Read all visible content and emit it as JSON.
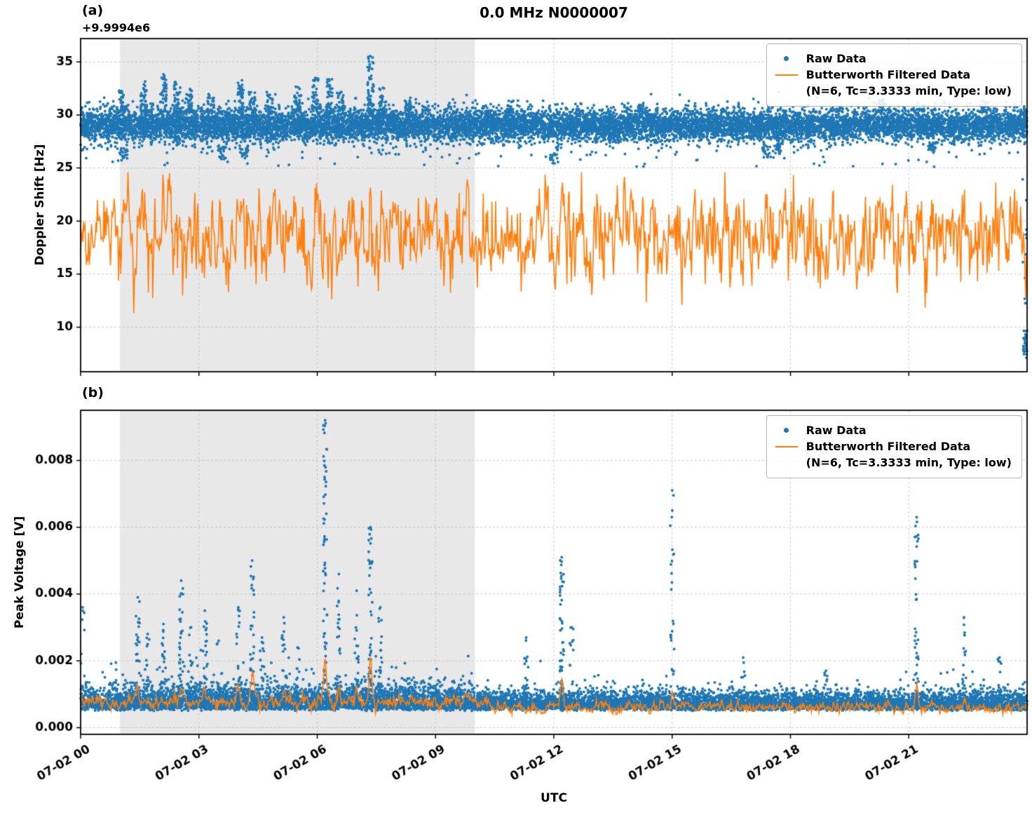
{
  "figure": {
    "title": "0.0 MHz N0000007",
    "panel_a_label": "(a)",
    "panel_b_label": "(b)",
    "offset_label": "+9.9994e6",
    "xlabel": "UTC",
    "legend": {
      "raw_label": "Raw Data",
      "filtered_label": "Butterworth Filtered Data",
      "filtered_sublabel": "(N=6, Tc=3.3333 min, Type: low)"
    },
    "colors": {
      "raw": "#1f77b4",
      "filtered": "#ff7f0e",
      "shade": "#e8e8e8",
      "grid": "#c9c9c9",
      "spine": "#000000"
    }
  },
  "chart_data": [
    {
      "type": "scatter",
      "panel": "(a)",
      "title": "0.0 MHz N0000007",
      "ylabel": "Doppler Shift [Hz]",
      "y_offset": "+9.9994e6",
      "ylim": [
        5.8,
        37.2
      ],
      "yticks": [
        10,
        15,
        20,
        25,
        30,
        35
      ],
      "ytick_labels": [
        "10",
        "15",
        "20",
        "25",
        "30",
        "35"
      ],
      "xlim_hours": [
        0,
        24
      ],
      "xtick_hours": [
        0,
        3,
        6,
        9,
        12,
        15,
        18,
        21
      ],
      "xtick_labels": [
        "07-02 00",
        "07-02 03",
        "07-02 06",
        "07-02 09",
        "07-02 12",
        "07-02 15",
        "07-02 18",
        "07-02 21"
      ],
      "shade_hours": [
        1.0,
        10.0
      ],
      "grid": "dashed",
      "legend_position": "upper right",
      "series": [
        {
          "name": "Raw Data",
          "kind": "scatter",
          "color": "#1f77b4",
          "n_points": 12000,
          "band_center": 29.0,
          "band_sigma": 0.75,
          "upper_clusters": [
            [
              1.05,
              32.3
            ],
            [
              1.6,
              33.2
            ],
            [
              2.1,
              33.9
            ],
            [
              2.45,
              33.2
            ],
            [
              2.75,
              32.5
            ],
            [
              3.3,
              32.1
            ],
            [
              4.05,
              33.4
            ],
            [
              4.35,
              32.3
            ],
            [
              4.8,
              31.9
            ],
            [
              5.5,
              32.7
            ],
            [
              5.95,
              33.6
            ],
            [
              6.3,
              33.4
            ],
            [
              6.6,
              32.3
            ],
            [
              7.35,
              35.8
            ],
            [
              7.65,
              32.7
            ],
            [
              8.3,
              31.7
            ],
            [
              10.9,
              31.4
            ],
            [
              14.2,
              31.2
            ],
            [
              20.3,
              31.5
            ],
            [
              22.9,
              31.3
            ]
          ],
          "lower_clusters": [
            [
              1.1,
              25.6
            ],
            [
              3.6,
              25.7
            ],
            [
              4.15,
              25.9
            ],
            [
              12.0,
              25.4
            ],
            [
              17.4,
              25.8
            ],
            [
              17.65,
              26.3
            ],
            [
              21.6,
              26.4
            ]
          ],
          "right_edge_drop": {
            "t": 23.9,
            "ymin": 7.0,
            "ymax": 9.8,
            "n": 28
          }
        },
        {
          "name": "Butterworth Filtered Data (N=6, Tc=3.3333 min, Type: low)",
          "kind": "line",
          "color": "#ff7f0e",
          "n_points": 1300,
          "mean": 18.35,
          "sigma": 2.0,
          "ar": 0.45,
          "min": 11.0,
          "max": 24.6
        }
      ]
    },
    {
      "type": "scatter",
      "panel": "(b)",
      "ylabel": "Peak Voltage [V]",
      "ylim": [
        -0.0002,
        0.0095
      ],
      "yticks": [
        0.0,
        0.002,
        0.004,
        0.006,
        0.008
      ],
      "ytick_labels": [
        "0.000",
        "0.002",
        "0.004",
        "0.006",
        "0.008"
      ],
      "xlim_hours": [
        0,
        24
      ],
      "xtick_hours": [
        0,
        3,
        6,
        9,
        12,
        15,
        18,
        21
      ],
      "xtick_labels": [
        "07-02 00",
        "07-02 03",
        "07-02 06",
        "07-02 09",
        "07-02 12",
        "07-02 15",
        "07-02 18",
        "07-02 21"
      ],
      "shade_hours": [
        1.0,
        10.0
      ],
      "grid": "dashed",
      "legend_position": "upper right",
      "series": [
        {
          "name": "Raw Data",
          "kind": "scatter",
          "color": "#1f77b4",
          "n_points": 10000,
          "baseline": 0.0005,
          "noise": 0.00024,
          "spikes": [
            [
              0.05,
              0.0036,
              10
            ],
            [
              1.45,
              0.0039,
              25
            ],
            [
              1.7,
              0.0028,
              14
            ],
            [
              2.1,
              0.0031,
              16
            ],
            [
              2.55,
              0.0044,
              28
            ],
            [
              2.8,
              0.003,
              14
            ],
            [
              3.15,
              0.0035,
              20
            ],
            [
              3.5,
              0.0026,
              10
            ],
            [
              4.0,
              0.0036,
              18
            ],
            [
              4.35,
              0.005,
              28
            ],
            [
              4.6,
              0.0027,
              10
            ],
            [
              5.15,
              0.0033,
              16
            ],
            [
              5.5,
              0.0024,
              8
            ],
            [
              6.2,
              0.0092,
              60
            ],
            [
              6.55,
              0.0046,
              22
            ],
            [
              7.0,
              0.0041,
              20
            ],
            [
              7.35,
              0.006,
              48
            ],
            [
              7.6,
              0.0036,
              16
            ],
            [
              8.0,
              0.0018,
              8
            ],
            [
              11.3,
              0.0027,
              12
            ],
            [
              12.2,
              0.0051,
              45
            ],
            [
              12.45,
              0.003,
              12
            ],
            [
              15.0,
              0.0071,
              26
            ],
            [
              16.8,
              0.0021,
              10
            ],
            [
              18.9,
              0.0017,
              8
            ],
            [
              21.2,
              0.0063,
              38
            ],
            [
              22.4,
              0.0033,
              14
            ],
            [
              23.3,
              0.0021,
              10
            ]
          ]
        },
        {
          "name": "Butterworth Filtered Data (N=6, Tc=3.3333 min, Type: low)",
          "kind": "line",
          "color": "#ff7f0e",
          "n_points": 1400,
          "base_shaded": 0.00078,
          "base_quiet": 0.0006,
          "sigma": 7e-05,
          "bumps": [
            [
              1.45,
              0.0004
            ],
            [
              2.55,
              0.0005
            ],
            [
              3.15,
              0.0004
            ],
            [
              4.0,
              0.0004
            ],
            [
              4.35,
              0.0009
            ],
            [
              5.15,
              0.0003
            ],
            [
              6.2,
              0.0014
            ],
            [
              6.55,
              0.0006
            ],
            [
              7.0,
              0.0005
            ],
            [
              7.35,
              0.0013
            ],
            [
              12.2,
              0.0008
            ],
            [
              15.0,
              0.0003
            ],
            [
              21.2,
              0.0008
            ],
            [
              22.4,
              0.0003
            ]
          ]
        }
      ]
    }
  ]
}
